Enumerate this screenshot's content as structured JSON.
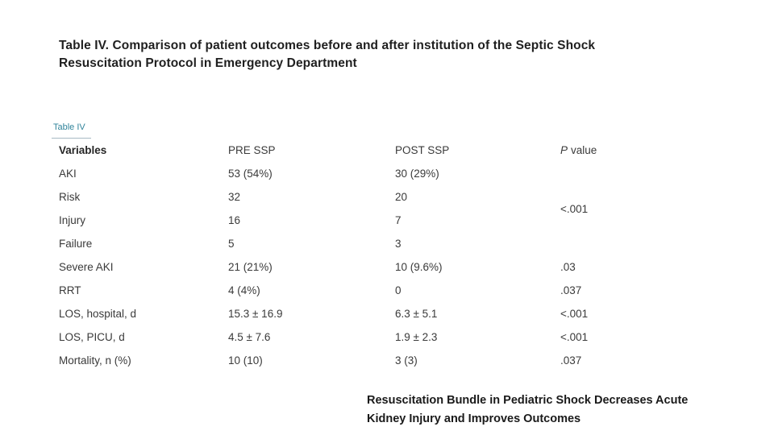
{
  "slide": {
    "title": {
      "line1": "Table IV. Comparison of patient outcomes before and after institution of the Septic Shock",
      "line2": "Resuscitation Protocol in Emergency Department"
    },
    "table_link_label": "Table IV",
    "footer": {
      "line1": "Resuscitation Bundle in Pediatric Shock Decreases Acute",
      "line2": "Kidney Injury and Improves Outcomes"
    },
    "colors": {
      "p_value_red": "#C0392B",
      "link_teal": "#31849B",
      "text_black": "#1f1f1f",
      "background": "#ffffff"
    }
  },
  "table": {
    "headers": {
      "variables": "Variables",
      "pre": "PRE SSP",
      "post": "POST SSP",
      "p_italic": "P",
      "p_rest": "value"
    },
    "merged_p_value": "<.001",
    "rows": [
      {
        "label": "AKI",
        "pre": "53 (54%)",
        "post": "30 (29%)",
        "p": ""
      },
      {
        "label": "Risk",
        "pre": "32",
        "post": "20",
        "p": ""
      },
      {
        "label": "Injury",
        "pre": "16",
        "post": "7",
        "p": ""
      },
      {
        "label": "Failure",
        "pre": "5",
        "post": "3",
        "p": ""
      },
      {
        "label": "Severe AKI",
        "pre": "21 (21%)",
        "post": "10 (9.6%)",
        "p": ".03"
      },
      {
        "label": "RRT",
        "pre": "4 (4%)",
        "post": "0",
        "p": ".037"
      },
      {
        "label": "LOS, hospital, d",
        "pre": "15.3 ± 16.9",
        "post": "6.3 ± 5.1",
        "p": "<.001"
      },
      {
        "label": "LOS, PICU, d",
        "pre": "4.5 ± 7.6",
        "post": "1.9 ± 2.3",
        "p": "<.001"
      },
      {
        "label": "Mortality, n (%)",
        "pre": "10 (10)",
        "post": "3 (3)",
        "p": ".037"
      }
    ]
  }
}
